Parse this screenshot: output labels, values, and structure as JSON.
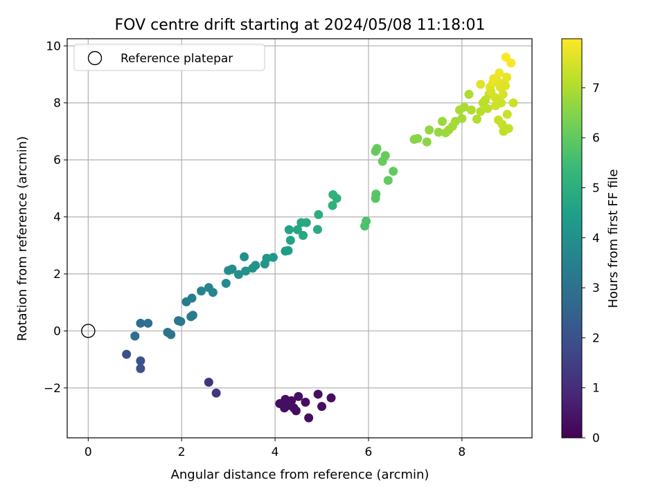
{
  "chart_data": {
    "type": "scatter",
    "title": "FOV centre drift starting at 2024/05/08 11:18:01",
    "xlabel": "Angular distance from reference (arcmin)",
    "ylabel": "Rotation from reference (arcmin)",
    "xlim": [
      -0.45,
      9.5
    ],
    "ylim": [
      -3.75,
      10.25
    ],
    "xticks": [
      0,
      2,
      4,
      6,
      8
    ],
    "yticks": [
      -2,
      0,
      2,
      4,
      6,
      8,
      10
    ],
    "ytick_labels": [
      "−2",
      "0",
      "2",
      "4",
      "6",
      "8",
      "10"
    ],
    "grid": true,
    "legend": {
      "position": "top-left",
      "entries": [
        "Reference platepar"
      ]
    },
    "reference_point": {
      "x": 0,
      "y": 0
    },
    "colorbar": {
      "label": "Hours from first FF file",
      "colormap": "viridis",
      "range": [
        0,
        7.98
      ],
      "ticks": [
        0,
        1,
        2,
        3,
        4,
        5,
        6,
        7
      ]
    },
    "points": [
      {
        "x": 4.1,
        "y": -2.55,
        "t": 0.3
      },
      {
        "x": 4.22,
        "y": -2.4,
        "t": 0.3
      },
      {
        "x": 4.27,
        "y": -2.62,
        "t": 0.3
      },
      {
        "x": 4.35,
        "y": -2.45,
        "t": 0.3
      },
      {
        "x": 4.4,
        "y": -2.7,
        "t": 0.3
      },
      {
        "x": 4.5,
        "y": -2.3,
        "t": 0.3
      },
      {
        "x": 4.45,
        "y": -2.8,
        "t": 0.3
      },
      {
        "x": 4.65,
        "y": -2.5,
        "t": 0.3
      },
      {
        "x": 4.72,
        "y": -3.05,
        "t": 0.3
      },
      {
        "x": 4.92,
        "y": -2.22,
        "t": 0.3
      },
      {
        "x": 5.0,
        "y": -2.65,
        "t": 0.3
      },
      {
        "x": 5.2,
        "y": -2.35,
        "t": 0.3
      },
      {
        "x": 4.2,
        "y": -2.7,
        "t": 0.3
      },
      {
        "x": 4.3,
        "y": -2.5,
        "t": 0.3
      },
      {
        "x": 2.58,
        "y": -1.8,
        "t": 1.2
      },
      {
        "x": 2.74,
        "y": -2.18,
        "t": 1.25
      },
      {
        "x": 0.82,
        "y": -0.82,
        "t": 1.95
      },
      {
        "x": 1.12,
        "y": -1.05,
        "t": 2.05
      },
      {
        "x": 1.12,
        "y": -1.32,
        "t": 2.0
      },
      {
        "x": 1.0,
        "y": -0.18,
        "t": 2.85
      },
      {
        "x": 1.12,
        "y": 0.27,
        "t": 2.9
      },
      {
        "x": 1.28,
        "y": 0.27,
        "t": 2.95
      },
      {
        "x": 1.7,
        "y": -0.05,
        "t": 3.05
      },
      {
        "x": 1.77,
        "y": -0.13,
        "t": 3.05
      },
      {
        "x": 1.93,
        "y": 0.36,
        "t": 3.2
      },
      {
        "x": 1.98,
        "y": 0.33,
        "t": 3.2
      },
      {
        "x": 2.1,
        "y": 1.02,
        "t": 3.35
      },
      {
        "x": 2.22,
        "y": 1.15,
        "t": 3.4
      },
      {
        "x": 2.2,
        "y": 0.5,
        "t": 3.3
      },
      {
        "x": 2.24,
        "y": 0.55,
        "t": 3.3
      },
      {
        "x": 2.42,
        "y": 1.4,
        "t": 3.55
      },
      {
        "x": 2.58,
        "y": 1.52,
        "t": 3.6
      },
      {
        "x": 2.67,
        "y": 1.35,
        "t": 3.6
      },
      {
        "x": 2.95,
        "y": 1.67,
        "t": 3.8
      },
      {
        "x": 3.0,
        "y": 2.12,
        "t": 3.9
      },
      {
        "x": 3.08,
        "y": 2.17,
        "t": 3.9
      },
      {
        "x": 3.22,
        "y": 1.98,
        "t": 3.95
      },
      {
        "x": 3.34,
        "y": 2.6,
        "t": 4.0
      },
      {
        "x": 3.37,
        "y": 2.1,
        "t": 4.0
      },
      {
        "x": 3.52,
        "y": 2.2,
        "t": 4.1
      },
      {
        "x": 3.58,
        "y": 2.3,
        "t": 4.1
      },
      {
        "x": 3.78,
        "y": 2.35,
        "t": 4.2
      },
      {
        "x": 3.82,
        "y": 2.55,
        "t": 4.2
      },
      {
        "x": 3.96,
        "y": 2.58,
        "t": 4.25
      },
      {
        "x": 4.22,
        "y": 2.8,
        "t": 4.4
      },
      {
        "x": 4.28,
        "y": 2.82,
        "t": 4.45
      },
      {
        "x": 4.3,
        "y": 3.55,
        "t": 4.6
      },
      {
        "x": 4.33,
        "y": 3.18,
        "t": 4.6
      },
      {
        "x": 4.48,
        "y": 3.55,
        "t": 4.7
      },
      {
        "x": 4.56,
        "y": 3.8,
        "t": 4.75
      },
      {
        "x": 4.6,
        "y": 3.35,
        "t": 4.75
      },
      {
        "x": 4.67,
        "y": 3.8,
        "t": 4.8
      },
      {
        "x": 4.91,
        "y": 3.56,
        "t": 4.9
      },
      {
        "x": 4.93,
        "y": 4.08,
        "t": 4.95
      },
      {
        "x": 5.23,
        "y": 4.4,
        "t": 5.1
      },
      {
        "x": 5.24,
        "y": 4.78,
        "t": 5.15
      },
      {
        "x": 5.32,
        "y": 4.65,
        "t": 5.15
      },
      {
        "x": 5.92,
        "y": 3.68,
        "t": 5.7
      },
      {
        "x": 5.95,
        "y": 3.85,
        "t": 5.7
      },
      {
        "x": 6.15,
        "y": 4.65,
        "t": 5.85
      },
      {
        "x": 6.16,
        "y": 4.8,
        "t": 5.85
      },
      {
        "x": 6.15,
        "y": 6.3,
        "t": 6.05
      },
      {
        "x": 6.18,
        "y": 6.4,
        "t": 6.05
      },
      {
        "x": 6.3,
        "y": 5.95,
        "t": 6.1
      },
      {
        "x": 6.36,
        "y": 6.15,
        "t": 6.1
      },
      {
        "x": 6.42,
        "y": 5.28,
        "t": 6.0
      },
      {
        "x": 6.53,
        "y": 5.6,
        "t": 6.05
      },
      {
        "x": 6.98,
        "y": 6.72,
        "t": 6.55
      },
      {
        "x": 7.05,
        "y": 6.75,
        "t": 6.55
      },
      {
        "x": 7.25,
        "y": 6.63,
        "t": 6.6
      },
      {
        "x": 7.3,
        "y": 7.05,
        "t": 6.65
      },
      {
        "x": 7.5,
        "y": 6.97,
        "t": 6.7
      },
      {
        "x": 7.58,
        "y": 7.35,
        "t": 6.75
      },
      {
        "x": 7.65,
        "y": 6.95,
        "t": 6.75
      },
      {
        "x": 7.72,
        "y": 7.05,
        "t": 6.8
      },
      {
        "x": 7.8,
        "y": 7.18,
        "t": 6.85
      },
      {
        "x": 7.86,
        "y": 7.35,
        "t": 6.85
      },
      {
        "x": 7.95,
        "y": 7.75,
        "t": 6.9
      },
      {
        "x": 8.0,
        "y": 7.45,
        "t": 6.9
      },
      {
        "x": 8.05,
        "y": 7.85,
        "t": 6.95
      },
      {
        "x": 8.15,
        "y": 8.3,
        "t": 7.0
      },
      {
        "x": 8.2,
        "y": 7.75,
        "t": 7.0
      },
      {
        "x": 8.32,
        "y": 7.43,
        "t": 7.05
      },
      {
        "x": 8.4,
        "y": 7.7,
        "t": 7.1
      },
      {
        "x": 8.45,
        "y": 8.0,
        "t": 7.15
      },
      {
        "x": 8.5,
        "y": 8.1,
        "t": 7.2
      },
      {
        "x": 8.55,
        "y": 7.8,
        "t": 7.2
      },
      {
        "x": 8.58,
        "y": 8.3,
        "t": 7.25
      },
      {
        "x": 8.4,
        "y": 8.65,
        "t": 7.6
      },
      {
        "x": 8.6,
        "y": 8.55,
        "t": 7.6
      },
      {
        "x": 8.62,
        "y": 8.4,
        "t": 7.5
      },
      {
        "x": 8.66,
        "y": 8.7,
        "t": 7.7
      },
      {
        "x": 8.7,
        "y": 8.2,
        "t": 7.5
      },
      {
        "x": 8.72,
        "y": 7.9,
        "t": 7.4
      },
      {
        "x": 8.75,
        "y": 8.8,
        "t": 7.7
      },
      {
        "x": 8.76,
        "y": 8.1,
        "t": 7.4
      },
      {
        "x": 8.78,
        "y": 7.4,
        "t": 7.3
      },
      {
        "x": 8.8,
        "y": 9.05,
        "t": 7.8
      },
      {
        "x": 8.82,
        "y": 8.55,
        "t": 7.6
      },
      {
        "x": 8.84,
        "y": 8.0,
        "t": 7.4
      },
      {
        "x": 8.86,
        "y": 7.25,
        "t": 7.3
      },
      {
        "x": 8.88,
        "y": 8.3,
        "t": 7.5
      },
      {
        "x": 8.89,
        "y": 7.0,
        "t": 7.2
      },
      {
        "x": 8.9,
        "y": 8.7,
        "t": 7.65
      },
      {
        "x": 8.93,
        "y": 8.6,
        "t": 7.6
      },
      {
        "x": 8.94,
        "y": 9.6,
        "t": 7.95
      },
      {
        "x": 8.96,
        "y": 8.9,
        "t": 7.7
      },
      {
        "x": 8.97,
        "y": 7.6,
        "t": 7.35
      },
      {
        "x": 9.0,
        "y": 7.1,
        "t": 7.25
      },
      {
        "x": 9.05,
        "y": 9.4,
        "t": 7.9
      },
      {
        "x": 9.1,
        "y": 8.0,
        "t": 7.4
      },
      {
        "x": 8.68,
        "y": 8.85,
        "t": 7.75
      }
    ]
  }
}
